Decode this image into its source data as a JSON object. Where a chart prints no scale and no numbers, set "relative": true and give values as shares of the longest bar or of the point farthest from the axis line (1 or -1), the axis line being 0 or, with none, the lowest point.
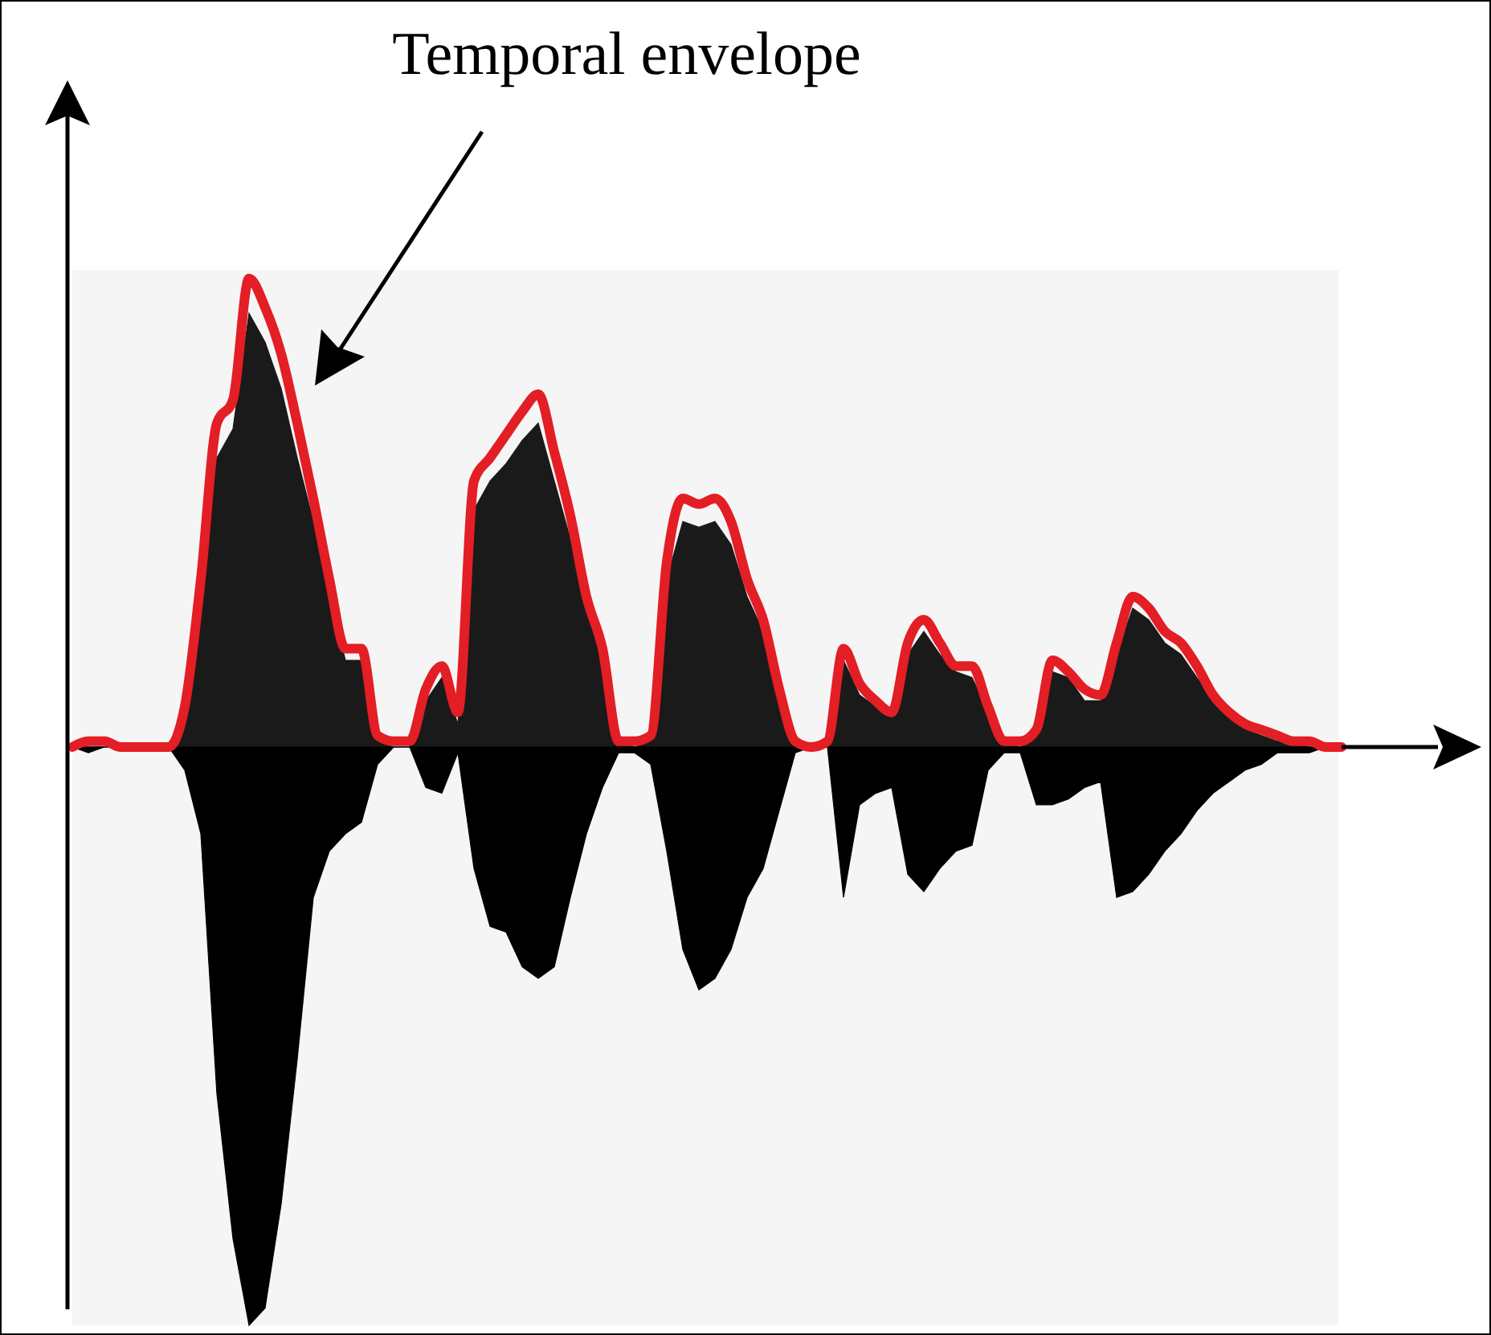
{
  "chart_data": {
    "type": "line",
    "relative": true,
    "annotations": [
      "Temporal envelope"
    ],
    "categories": [
      null,
      null,
      null,
      null,
      null,
      null,
      null,
      null,
      null,
      null,
      null,
      null,
      null,
      null,
      null,
      null,
      null,
      null,
      null,
      null,
      null,
      null,
      null,
      null,
      null,
      null,
      null,
      null,
      null,
      null,
      null,
      null,
      null,
      null,
      null,
      null,
      null,
      null,
      null,
      null,
      null,
      null,
      null,
      null,
      null,
      null,
      null,
      null,
      null,
      null,
      null,
      null,
      null,
      null,
      null,
      null,
      null,
      null,
      null,
      null,
      null,
      null,
      null,
      null,
      null,
      null,
      null,
      null,
      null,
      null,
      null,
      null,
      null,
      null,
      null,
      null,
      null,
      null,
      null,
      null
    ],
    "series": [
      {
        "type": "area",
        "color": "#1a1a1a",
        "values": [
          0,
          0,
          0,
          0,
          0,
          0,
          0,
          0.05,
          0.26,
          0.5,
          0.55,
          0.75,
          0.7,
          0.62,
          0.5,
          0.39,
          0.26,
          0.15,
          0.15,
          0.01,
          0,
          0,
          0.08,
          0.12,
          0.04,
          0.41,
          0.46,
          0.49,
          0.53,
          0.56,
          0.46,
          0.36,
          0.24,
          0.15,
          0.01,
          0,
          0.01,
          0.29,
          0.39,
          0.38,
          0.39,
          0.35,
          0.26,
          0.2,
          0.08,
          0,
          0,
          0,
          0.15,
          0.09,
          0.07,
          0.05,
          0.16,
          0.2,
          0.16,
          0.13,
          0.12,
          0.06,
          0.01,
          0,
          0.02,
          0.13,
          0.12,
          0.08,
          0.08,
          0.16,
          0.24,
          0.22,
          0.18,
          0.16,
          0.12,
          0.08,
          0.05,
          0.03,
          0.02,
          0.01,
          0.01,
          0,
          0,
          0
        ]
      },
      {
        "type": "area",
        "color": "#000000",
        "values": [
          0,
          -0.01,
          0,
          0,
          0,
          0,
          0,
          -0.04,
          -0.15,
          -0.6,
          -0.85,
          -1,
          -0.97,
          -0.79,
          -0.54,
          -0.26,
          -0.18,
          -0.15,
          -0.13,
          -0.03,
          0,
          0,
          -0.07,
          -0.08,
          -0.01,
          -0.21,
          -0.31,
          -0.32,
          -0.38,
          -0.4,
          -0.38,
          -0.26,
          -0.15,
          -0.07,
          -0.01,
          -0.01,
          -0.03,
          -0.18,
          -0.35,
          -0.42,
          -0.4,
          -0.35,
          -0.26,
          -0.21,
          -0.11,
          -0.01,
          0,
          0,
          -0.26,
          -0.1,
          -0.08,
          -0.07,
          -0.22,
          -0.25,
          -0.21,
          -0.18,
          -0.17,
          -0.04,
          -0.01,
          -0.01,
          -0.1,
          -0.1,
          -0.09,
          -0.07,
          -0.06,
          -0.26,
          -0.25,
          -0.22,
          -0.18,
          -0.15,
          -0.11,
          -0.08,
          -0.06,
          -0.04,
          -0.03,
          -0.01,
          -0.01,
          -0.01,
          0,
          0
        ]
      },
      {
        "color": "#e31e24",
        "values": [
          0,
          0.01,
          0.01,
          0,
          0,
          0,
          0,
          0.07,
          0.29,
          0.56,
          0.6,
          0.81,
          0.76,
          0.68,
          0.56,
          0.43,
          0.29,
          0.17,
          0.17,
          0.02,
          0.01,
          0.01,
          0.1,
          0.14,
          0.06,
          0.46,
          0.5,
          0.54,
          0.58,
          0.61,
          0.51,
          0.4,
          0.26,
          0.17,
          0.01,
          0.01,
          0.02,
          0.32,
          0.43,
          0.42,
          0.43,
          0.39,
          0.29,
          0.22,
          0.1,
          0.01,
          0,
          0.01,
          0.17,
          0.11,
          0.08,
          0.06,
          0.18,
          0.22,
          0.18,
          0.14,
          0.14,
          0.07,
          0.01,
          0.01,
          0.03,
          0.15,
          0.13,
          0.1,
          0.09,
          0.18,
          0.26,
          0.24,
          0.2,
          0.18,
          0.14,
          0.09,
          0.06,
          0.04,
          0.03,
          0.02,
          0.01,
          0.01,
          0,
          0
        ]
      }
    ]
  }
}
